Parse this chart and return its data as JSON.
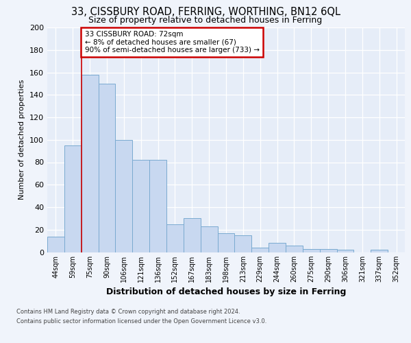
{
  "title1": "33, CISSBURY ROAD, FERRING, WORTHING, BN12 6QL",
  "title2": "Size of property relative to detached houses in Ferring",
  "xlabel": "Distribution of detached houses by size in Ferring",
  "ylabel": "Number of detached properties",
  "categories": [
    "44sqm",
    "59sqm",
    "75sqm",
    "90sqm",
    "106sqm",
    "121sqm",
    "136sqm",
    "152sqm",
    "167sqm",
    "183sqm",
    "198sqm",
    "213sqm",
    "229sqm",
    "244sqm",
    "260sqm",
    "275sqm",
    "290sqm",
    "306sqm",
    "321sqm",
    "337sqm",
    "352sqm"
  ],
  "values": [
    14,
    95,
    158,
    150,
    100,
    82,
    82,
    25,
    30,
    23,
    17,
    15,
    4,
    8,
    6,
    3,
    3,
    2,
    0,
    2,
    0
  ],
  "bar_color": "#c8d8f0",
  "bar_edge_color": "#7aaad0",
  "property_line_index": 2,
  "annotation_line1": "33 CISSBURY ROAD: 72sqm",
  "annotation_line2": "← 8% of detached houses are smaller (67)",
  "annotation_line3": "90% of semi-detached houses are larger (733) →",
  "annotation_box_facecolor": "#ffffff",
  "annotation_box_edgecolor": "#cc0000",
  "red_line_color": "#cc0000",
  "fig_bg_color": "#f0f4fb",
  "plot_bg_color": "#e6edf8",
  "grid_color": "#ffffff",
  "footer1": "Contains HM Land Registry data © Crown copyright and database right 2024.",
  "footer2": "Contains public sector information licensed under the Open Government Licence v3.0.",
  "ylim": [
    0,
    200
  ],
  "yticks": [
    0,
    20,
    40,
    60,
    80,
    100,
    120,
    140,
    160,
    180,
    200
  ]
}
